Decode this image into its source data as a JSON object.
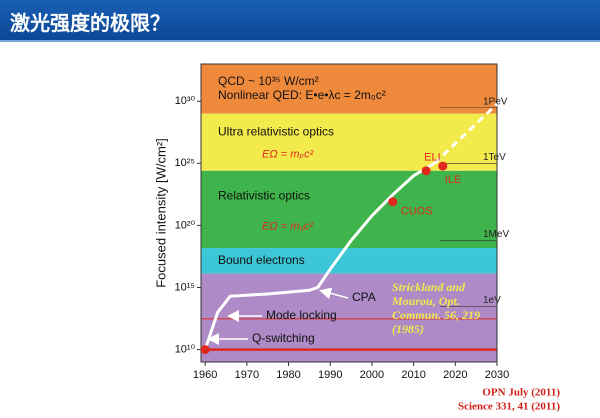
{
  "header": {
    "title": "激光强度的极限？"
  },
  "chart_data": {
    "type": "line",
    "ylabel": "Focused intensity [W/cm²]",
    "xlim": [
      1959,
      2030
    ],
    "xticks": [
      1960,
      1970,
      1980,
      1990,
      2000,
      2010,
      2020,
      2030
    ],
    "ylim": [
      1000000000.0,
      1e+33
    ],
    "log_y": true,
    "yticks": [
      {
        "value": 10000000000.0,
        "label": "10¹⁰"
      },
      {
        "value": 1000000000000000.0,
        "label": "10¹⁵"
      },
      {
        "value": 1e+20,
        "label": "10²⁰"
      },
      {
        "value": 1e+25,
        "label": "10²⁵"
      },
      {
        "value": 1e+30,
        "label": "10³⁰"
      }
    ],
    "regions": [
      {
        "from": 1e+29,
        "to": 1e+33,
        "color": "#ef8a3c",
        "labels": [
          "QCD ~ 10³⁵ W/cm²",
          "Nonlinear QED: E•e•λc = 2m₀c²"
        ]
      },
      {
        "from": 2.5e+24,
        "to": 1e+29,
        "color": "#f3ea4c",
        "labels": [
          "Ultra relativistic optics"
        ],
        "formula": "EΩ = mₚc²"
      },
      {
        "from": 1.5e+18,
        "to": 2.5e+24,
        "color": "#3fb44c",
        "labels": [
          "Relativistic optics"
        ],
        "formula": "EΩ = m₀c²"
      },
      {
        "from": 1.3e+16,
        "to": 1.5e+18,
        "color": "#3cc6d6",
        "labels": [
          "Bound electrons"
        ]
      },
      {
        "from": 1000000000.0,
        "to": 1.3e+16,
        "color": "#ae8ac6",
        "labels": []
      }
    ],
    "hlines": [
      {
        "value": 3000000000000.0,
        "color": "#e0281e"
      },
      {
        "value": 10000000000.0,
        "color": "#e0281e"
      }
    ],
    "energy_labels": [
      {
        "label": "1PeV",
        "value": 3e+29
      },
      {
        "label": "1TeV",
        "value": 1e+25
      },
      {
        "label": "1MeV",
        "value": 6e+18
      },
      {
        "label": "1eV",
        "value": 30000000000000.0
      }
    ],
    "series": [
      {
        "color": "#ffffff",
        "dashed": false,
        "x": [
          1960,
          1963,
          1966,
          1975,
          1985,
          1987,
          1990,
          1995,
          2000,
          2005,
          2010,
          2015
        ],
        "values": [
          10000000000.0,
          10000000000000.0,
          200000000000000.0,
          300000000000000.0,
          600000000000000.0,
          1000000000000000.0,
          3e+16,
          6e+18,
          6e+20,
          3e+22,
          1e+24,
          1e+25
        ]
      },
      {
        "color": "#ffffff",
        "dashed": true,
        "x": [
          2015,
          2030
        ],
        "values": [
          1e+25,
          6e+29
        ]
      }
    ],
    "points": {
      "color": "#e0281e",
      "x": [
        1960,
        2005,
        2013,
        2017
      ],
      "values": [
        10000000000.0,
        8e+21,
        2.5e+24,
        6e+24
      ],
      "labels": [
        null,
        "CUOS",
        "ELI",
        "ILE"
      ]
    },
    "annotations": [
      "Mode locking",
      "Q-switching",
      "CPA"
    ],
    "citation": [
      "Strickland and",
      "Mourou, Opt.",
      "Commun. 56, 219",
      "(1985)"
    ],
    "sources": [
      "OPN July (2011)",
      "Science 331, 41 (2011)"
    ]
  }
}
